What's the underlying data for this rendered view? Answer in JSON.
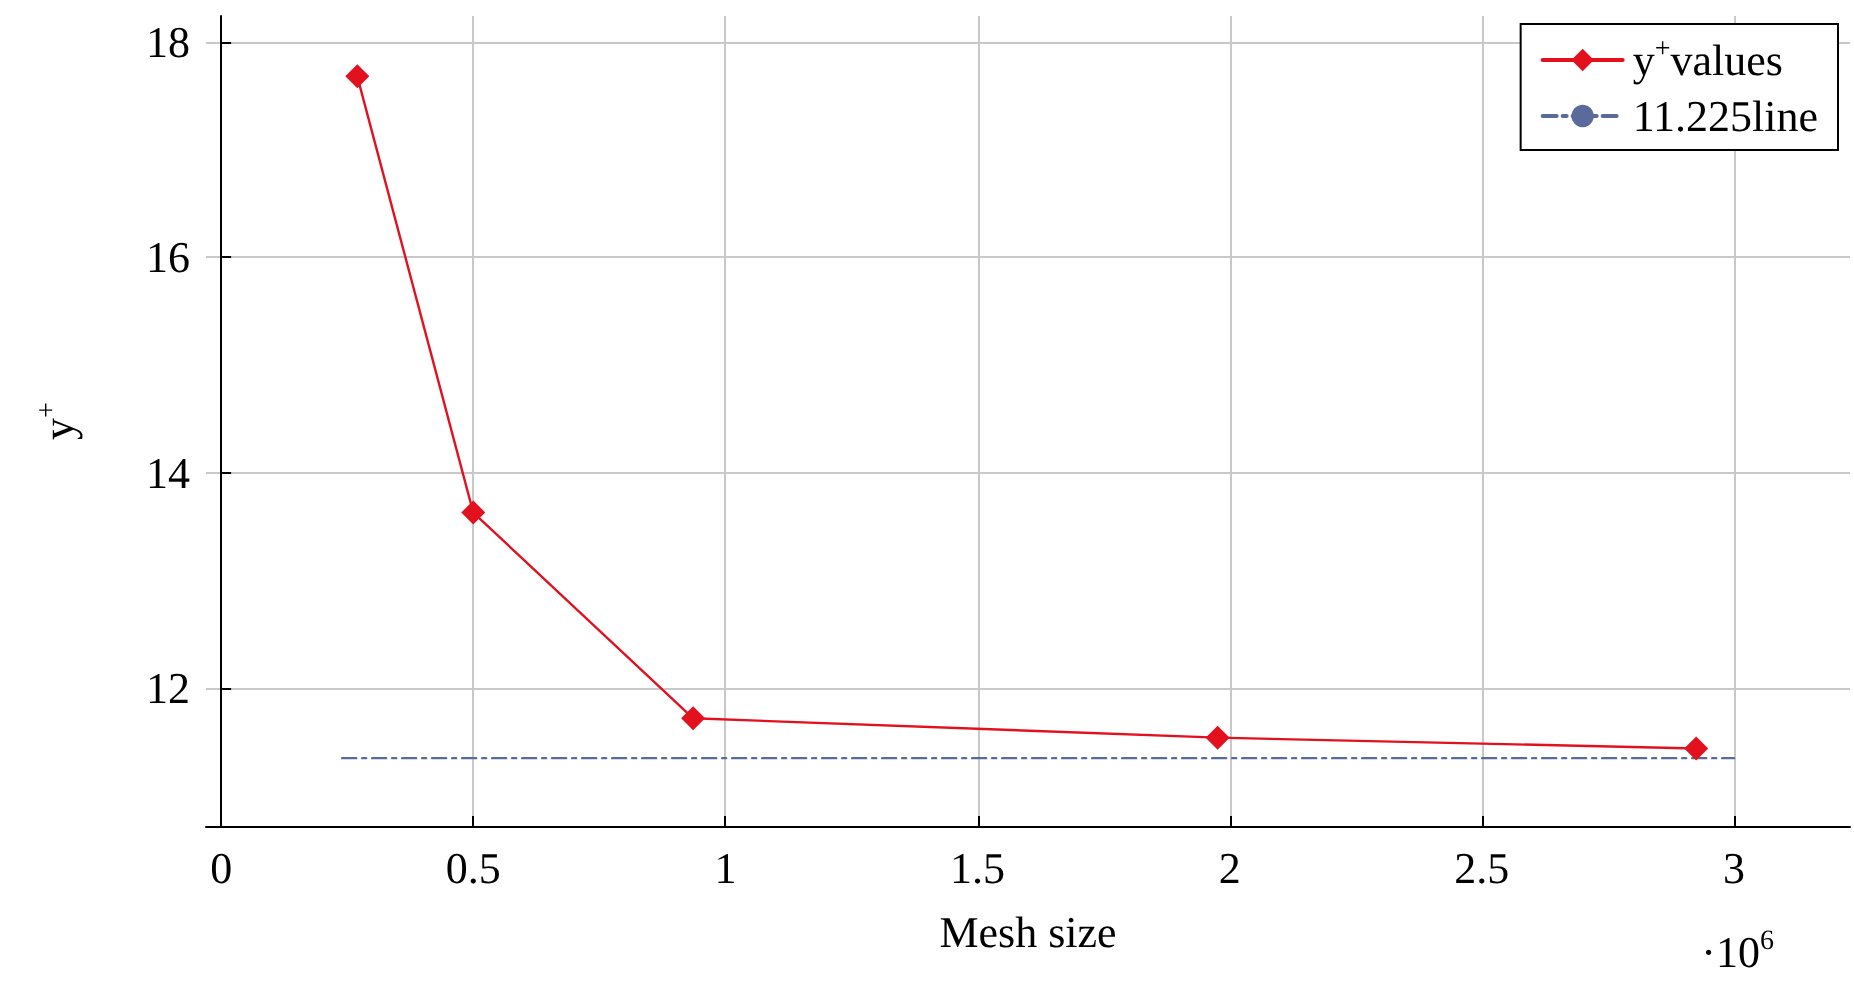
{
  "chart_data": {
    "type": "line",
    "xlabel": "Mesh size",
    "ylabel": "y$^{+}$",
    "x": [
      0.27,
      0.5,
      0.936,
      1.976,
      2.925
    ],
    "series": [
      {
        "name": "y$^{+}$values",
        "color": "#e3101e",
        "values": [
          17.68,
          13.63,
          11.72,
          11.54,
          11.44
        ],
        "marker": "diamond",
        "line_style": "solid"
      },
      {
        "name": "11.225line",
        "color": "#5a6a9a",
        "x": [
          0.24,
          3.0
        ],
        "values": [
          11.35,
          11.35
        ],
        "marker": "none",
        "line_style": "dashed"
      }
    ],
    "xlim": [
      -0.03,
      3.23
    ],
    "xticks": [
      0,
      0.5,
      1,
      1.5,
      2,
      2.5,
      3
    ],
    "ylim": [
      10.72,
      18.24
    ],
    "yticks": [
      12,
      14,
      16,
      18
    ],
    "annotations": [
      "·10$^{6}$"
    ],
    "grid": true,
    "legend": "top right"
  }
}
